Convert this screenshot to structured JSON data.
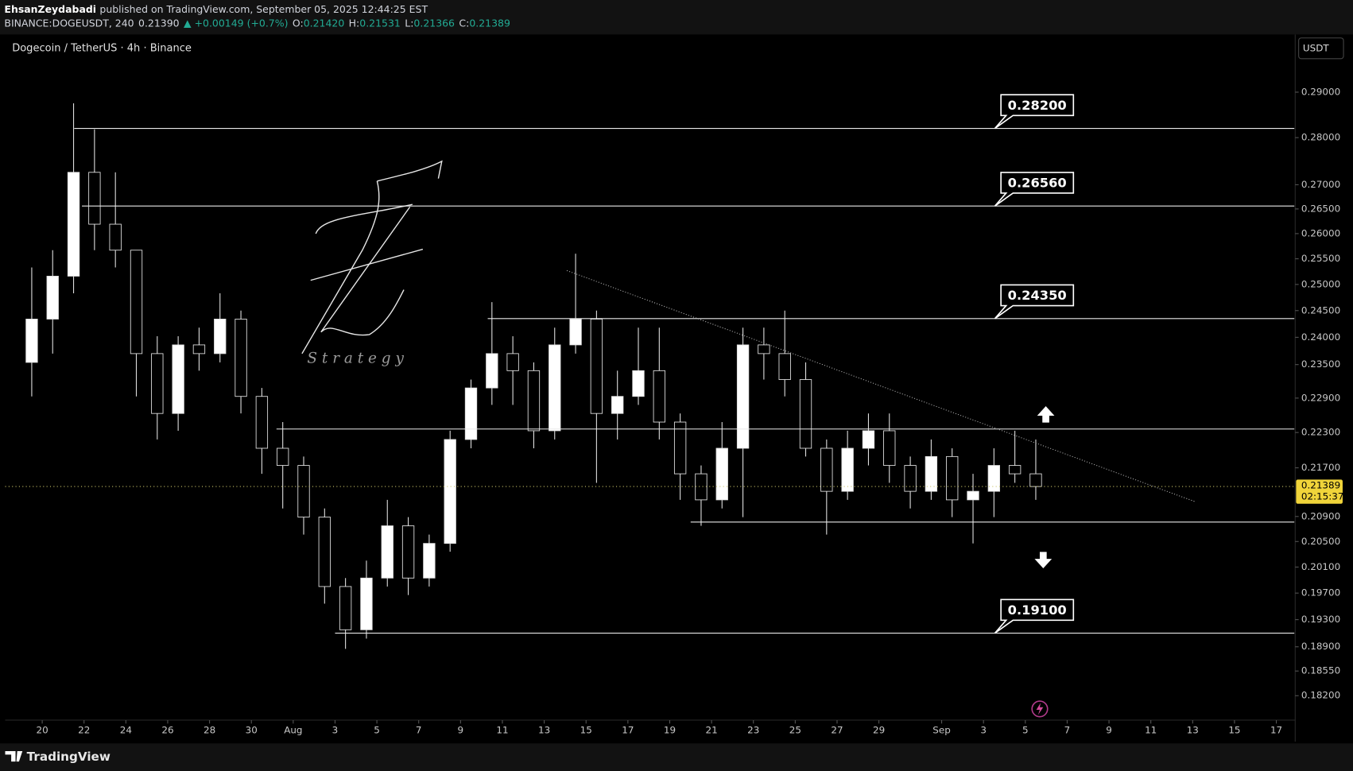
{
  "header": {
    "author": "EhsanZeydabadi",
    "published": "published on TradingView.com, September 05, 2025 12:44:25 EST",
    "symbol": "BINANCE:DOGEUSDT, 240",
    "price": "0.21390",
    "change": "▲ +0.00149 (+0.7%)",
    "ohlc": [
      {
        "key": "O:",
        "value": "0.21420"
      },
      {
        "key": "H:",
        "value": "0.21531"
      },
      {
        "key": "L:",
        "value": "0.21366"
      },
      {
        "key": "C:",
        "value": "0.21389"
      }
    ]
  },
  "chart_data": {
    "type": "candlestick",
    "title": "Dogecoin / TetherUS · 4h · Binance",
    "currency": "USDT",
    "log_scale": true,
    "grid": false,
    "x": [
      -1,
      0,
      1,
      2,
      3,
      4,
      5,
      6,
      7,
      8,
      9,
      10,
      11,
      12,
      13,
      14,
      15,
      16,
      17,
      18,
      19,
      20,
      21,
      22,
      23,
      24,
      25,
      26,
      27,
      28,
      29,
      30,
      31,
      32,
      33,
      34,
      35,
      36,
      37,
      38,
      39,
      40,
      41,
      42,
      43,
      44,
      45,
      46,
      47
    ],
    "open": [
      0.2354,
      0.2434,
      0.2516,
      0.2726,
      0.2619,
      0.2567,
      0.237,
      0.2263,
      0.2386,
      0.237,
      0.2434,
      0.2293,
      0.2203,
      0.2174,
      0.2089,
      0.198,
      0.1915,
      0.1993,
      0.2075,
      0.1993,
      0.2047,
      0.2218,
      0.2308,
      0.237,
      0.2339,
      0.2233,
      0.2386,
      0.2434,
      0.2263,
      0.2293,
      0.2339,
      0.2248,
      0.216,
      0.2117,
      0.2203,
      0.2386,
      0.237,
      0.2323,
      0.2203,
      0.2131,
      0.2203,
      0.2233,
      0.2174,
      0.2131,
      0.2189,
      0.2117,
      0.2131,
      0.2174,
      0.216
    ],
    "high": [
      0.2533,
      0.2567,
      0.2875,
      0.2818,
      0.2726,
      0.2567,
      0.2402,
      0.2402,
      0.2418,
      0.2483,
      0.245,
      0.2308,
      0.2248,
      0.2189,
      0.2103,
      0.1993,
      0.202,
      0.2117,
      0.2089,
      0.2061,
      0.2233,
      0.2323,
      0.2466,
      0.2402,
      0.2354,
      0.2418,
      0.256,
      0.245,
      0.2339,
      0.2418,
      0.2418,
      0.2263,
      0.2174,
      0.2248,
      0.2418,
      0.2418,
      0.245,
      0.2354,
      0.2218,
      0.2233,
      0.2263,
      0.2263,
      0.2189,
      0.2218,
      0.2203,
      0.216,
      0.2203,
      0.2233,
      0.2218
    ],
    "low": [
      0.2293,
      0.237,
      0.2483,
      0.2567,
      0.2533,
      0.2293,
      0.2218,
      0.2233,
      0.2339,
      0.2354,
      0.2263,
      0.216,
      0.2103,
      0.2061,
      0.1954,
      0.1887,
      0.1902,
      0.198,
      0.1967,
      0.198,
      0.2034,
      0.2203,
      0.2278,
      0.2278,
      0.2203,
      0.2218,
      0.237,
      0.2145,
      0.2218,
      0.2278,
      0.2218,
      0.2117,
      0.2075,
      0.2103,
      0.2089,
      0.2323,
      0.2293,
      0.2189,
      0.2061,
      0.2117,
      0.2174,
      0.2145,
      0.2103,
      0.2117,
      0.2089,
      0.2047,
      0.2089,
      0.2145,
      0.2117
    ],
    "close": [
      0.2434,
      0.2516,
      0.2726,
      0.2619,
      0.2567,
      0.237,
      0.2263,
      0.2386,
      0.237,
      0.2434,
      0.2293,
      0.2203,
      0.2174,
      0.2089,
      0.198,
      0.1915,
      0.1993,
      0.2075,
      0.1993,
      0.2047,
      0.2218,
      0.2308,
      0.237,
      0.2339,
      0.2233,
      0.2386,
      0.2434,
      0.2263,
      0.2293,
      0.2339,
      0.2248,
      0.216,
      0.2117,
      0.2203,
      0.2386,
      0.237,
      0.2323,
      0.2203,
      0.2131,
      0.2203,
      0.2233,
      0.2174,
      0.2131,
      0.2189,
      0.2117,
      0.2131,
      0.2174,
      0.216,
      0.21389
    ],
    "up_color": "#ffffff",
    "down_color": "#000000",
    "wick_color": "#e0e0e0",
    "xlim": [
      -1.77,
      59.86
    ],
    "xticks": [
      {
        "value": 0,
        "label": "20"
      },
      {
        "value": 2,
        "label": "22"
      },
      {
        "value": 4,
        "label": "24"
      },
      {
        "value": 6,
        "label": "26"
      },
      {
        "value": 8,
        "label": "28"
      },
      {
        "value": 10,
        "label": "30"
      },
      {
        "value": 12,
        "label": "Aug"
      },
      {
        "value": 14,
        "label": "3"
      },
      {
        "value": 16,
        "label": "5"
      },
      {
        "value": 18,
        "label": "7"
      },
      {
        "value": 20,
        "label": "9"
      },
      {
        "value": 22,
        "label": "11"
      },
      {
        "value": 24,
        "label": "13"
      },
      {
        "value": 26,
        "label": "15"
      },
      {
        "value": 28,
        "label": "17"
      },
      {
        "value": 30,
        "label": "19"
      },
      {
        "value": 32,
        "label": "21"
      },
      {
        "value": 34,
        "label": "23"
      },
      {
        "value": 36,
        "label": "25"
      },
      {
        "value": 38,
        "label": "27"
      },
      {
        "value": 40,
        "label": "29"
      },
      {
        "value": 43,
        "label": "Sep"
      },
      {
        "value": 45,
        "label": "3"
      },
      {
        "value": 47,
        "label": "5"
      },
      {
        "value": 49,
        "label": "7"
      },
      {
        "value": 51,
        "label": "9"
      },
      {
        "value": 53,
        "label": "11"
      },
      {
        "value": 55,
        "label": "13"
      },
      {
        "value": 57,
        "label": "15"
      },
      {
        "value": 59,
        "label": "17"
      }
    ],
    "ylim": [
      0.1786,
      0.3032
    ],
    "yticks": [
      {
        "value": 0.29,
        "label": "0.29000"
      },
      {
        "value": 0.28,
        "label": "0.28000"
      },
      {
        "value": 0.27,
        "label": "0.27000"
      },
      {
        "value": 0.265,
        "label": "0.26500"
      },
      {
        "value": 0.26,
        "label": "0.26000"
      },
      {
        "value": 0.255,
        "label": "0.25500"
      },
      {
        "value": 0.25,
        "label": "0.25000"
      },
      {
        "value": 0.245,
        "label": "0.24500"
      },
      {
        "value": 0.24,
        "label": "0.24000"
      },
      {
        "value": 0.235,
        "label": "0.23500"
      },
      {
        "value": 0.229,
        "label": "0.22900"
      },
      {
        "value": 0.223,
        "label": "0.22300"
      },
      {
        "value": 0.217,
        "label": "0.21700"
      },
      {
        "value": 0.209,
        "label": "0.20900"
      },
      {
        "value": 0.205,
        "label": "0.20500"
      },
      {
        "value": 0.201,
        "label": "0.20100"
      },
      {
        "value": 0.197,
        "label": "0.19700"
      },
      {
        "value": 0.193,
        "label": "0.19300"
      },
      {
        "value": 0.189,
        "label": "0.18900"
      },
      {
        "value": 0.1855,
        "label": "0.18550"
      },
      {
        "value": 0.182,
        "label": "0.18200"
      }
    ],
    "levels": [
      {
        "value": 0.282,
        "label": "0.28200",
        "start": 1.53
      },
      {
        "value": 0.2656,
        "label": "0.26560",
        "start": 1.9
      },
      {
        "value": 0.2435,
        "label": "0.24350",
        "start": 21.3
      },
      {
        "value": 0.2236,
        "start": 11.2
      },
      {
        "value": 0.2081,
        "start": 31.0
      },
      {
        "value": 0.191,
        "label": "0.19100",
        "start": 14.0
      }
    ],
    "trendline": {
      "x": [
        25.08,
        55.12
      ],
      "y": [
        0.2527,
        0.2114
      ]
    },
    "last_price": {
      "value": 0.21389,
      "label": "0.21389"
    },
    "countdown": "02:15:37",
    "watermark": "S t r a t e g y"
  },
  "footer": {
    "brand": "TradingView"
  }
}
